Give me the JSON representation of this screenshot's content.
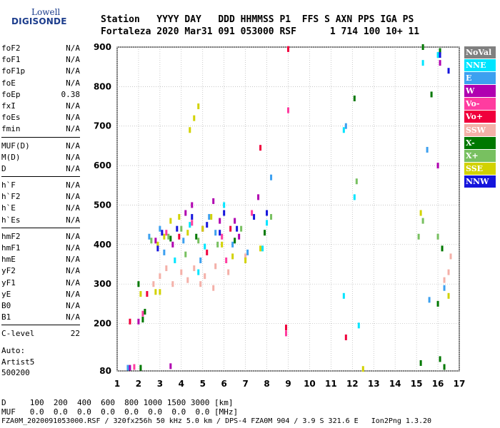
{
  "logo": {
    "line1": "Lowell",
    "line2": "DIGISONDE"
  },
  "header": {
    "line1": "Station   YYYY DAY   DDD HHMMSS P1  FFS S AXN PPS IGA PS",
    "line2": "Fortaleza 2020 Mar31 091 053000 RSF      1 714 100 10+ 11"
  },
  "params": {
    "group1": [
      {
        "name": "foF2",
        "value": "N/A"
      },
      {
        "name": "foF1",
        "value": "N/A"
      },
      {
        "name": "foF1p",
        "value": "N/A"
      },
      {
        "name": "foE",
        "value": "N/A"
      },
      {
        "name": "foEp",
        "value": "0.38"
      },
      {
        "name": "fxI",
        "value": "N/A"
      },
      {
        "name": "foEs",
        "value": "N/A"
      },
      {
        "name": "fmin",
        "value": "N/A"
      }
    ],
    "group2": [
      {
        "name": "MUF(D)",
        "value": "N/A"
      },
      {
        "name": "M(D)",
        "value": "N/A"
      },
      {
        "name": "D",
        "value": "N/A"
      }
    ],
    "group3": [
      {
        "name": "h`F",
        "value": "N/A"
      },
      {
        "name": "h`F2",
        "value": "N/A"
      },
      {
        "name": "h`E",
        "value": "N/A"
      },
      {
        "name": "h`Es",
        "value": "N/A"
      }
    ],
    "group4": [
      {
        "name": "hmF2",
        "value": "N/A"
      },
      {
        "name": "hmF1",
        "value": "N/A"
      },
      {
        "name": "hmE",
        "value": "N/A"
      },
      {
        "name": "yF2",
        "value": "N/A"
      },
      {
        "name": "yF1",
        "value": "N/A"
      },
      {
        "name": "yE",
        "value": "N/A"
      },
      {
        "name": "B0",
        "value": "N/A"
      },
      {
        "name": "B1",
        "value": "N/A"
      }
    ],
    "group5": [
      {
        "name": "C-level",
        "value": "22"
      }
    ]
  },
  "auto": {
    "line1": "Auto:",
    "line2": "Artist5",
    "line3": "500200"
  },
  "bottom": {
    "d_line": "D     100  200  400  600  800 1000 1500 3000 [km]",
    "muf_line": "MUF   0.0  0.0  0.0  0.0  0.0  0.0  0.0  0.0 [MHz]",
    "footer": "FZA0M_2020091053000.RSF / 320fx256h 50 kHz 5.0 km / DPS-4 FZA0M 904 / 3.9 S 321.6 E   Ion2Png 1.3.20"
  },
  "legend": [
    {
      "label": "NoVal",
      "color": "#808080"
    },
    {
      "label": "NNE",
      "color": "#00e5ff"
    },
    {
      "label": "E",
      "color": "#3ca0f0"
    },
    {
      "label": "W",
      "color": "#b000b0"
    },
    {
      "label": "Vo-",
      "color": "#ff3ca0"
    },
    {
      "label": "Vo+",
      "color": "#f0003c"
    },
    {
      "label": "SSW",
      "color": "#f4b0a8"
    },
    {
      "label": "X-",
      "color": "#007800"
    },
    {
      "label": "X+",
      "color": "#78c060"
    },
    {
      "label": "SSE",
      "color": "#d2d200"
    },
    {
      "label": "NNW",
      "color": "#1414dc"
    }
  ],
  "chart_data": {
    "type": "scatter",
    "title": "",
    "xlabel": "",
    "ylabel": "",
    "xlim": [
      1,
      17
    ],
    "ylim": [
      80,
      900
    ],
    "xticks": [
      1,
      2,
      3,
      4,
      5,
      6,
      7,
      8,
      9,
      10,
      11,
      12,
      13,
      14,
      15,
      16,
      17
    ],
    "yticks": [
      80,
      200,
      300,
      400,
      500,
      600,
      700,
      800,
      900
    ],
    "grid": true,
    "series": [
      {
        "name": "NNE",
        "points": [
          [
            4.4,
            450
          ],
          [
            5.1,
            395
          ],
          [
            6.0,
            500
          ],
          [
            7.8,
            390
          ],
          [
            8.0,
            455
          ],
          [
            11.6,
            690
          ],
          [
            11.6,
            270
          ],
          [
            12.1,
            520
          ],
          [
            12.3,
            195
          ],
          [
            16.0,
            880
          ],
          [
            15.3,
            860
          ],
          [
            4.8,
            330
          ],
          [
            3.7,
            360
          ]
        ]
      },
      {
        "name": "E",
        "points": [
          [
            2.5,
            420
          ],
          [
            3.2,
            380
          ],
          [
            4.1,
            410
          ],
          [
            4.9,
            360
          ],
          [
            5.6,
            430
          ],
          [
            6.4,
            400
          ],
          [
            7.1,
            380
          ],
          [
            8.2,
            570
          ],
          [
            11.7,
            700
          ],
          [
            15.5,
            640
          ],
          [
            15.6,
            260
          ],
          [
            16.3,
            290
          ],
          [
            3.0,
            440
          ],
          [
            5.3,
            470
          ],
          [
            1.5,
            88
          ]
        ]
      },
      {
        "name": "W",
        "points": [
          [
            2.8,
            410
          ],
          [
            3.6,
            400
          ],
          [
            4.2,
            480
          ],
          [
            5.0,
            440
          ],
          [
            5.8,
            460
          ],
          [
            6.7,
            420
          ],
          [
            7.6,
            520
          ],
          [
            16.0,
            600
          ],
          [
            16.1,
            860
          ],
          [
            2.0,
            205
          ],
          [
            1.6,
            88
          ],
          [
            3.5,
            92
          ],
          [
            6.5,
            460
          ],
          [
            4.5,
            500
          ],
          [
            5.5,
            510
          ]
        ]
      },
      {
        "name": "Vo-",
        "points": [
          [
            9.0,
            895
          ],
          [
            9.0,
            740
          ],
          [
            8.9,
            175
          ],
          [
            4.5,
            455
          ],
          [
            5.9,
            420
          ],
          [
            2.2,
            225
          ],
          [
            1.8,
            90
          ],
          [
            7.3,
            480
          ],
          [
            3.3,
            430
          ],
          [
            6.1,
            360
          ]
        ]
      },
      {
        "name": "Vo+",
        "points": [
          [
            9.0,
            895
          ],
          [
            8.9,
            190
          ],
          [
            7.7,
            645
          ],
          [
            3.9,
            420
          ],
          [
            5.2,
            380
          ],
          [
            6.3,
            440
          ],
          [
            2.4,
            275
          ],
          [
            1.6,
            205
          ],
          [
            11.7,
            165
          ]
        ]
      },
      {
        "name": "SSW",
        "points": [
          [
            3.0,
            320
          ],
          [
            3.6,
            300
          ],
          [
            4.0,
            330
          ],
          [
            4.6,
            340
          ],
          [
            5.1,
            320
          ],
          [
            5.6,
            345
          ],
          [
            6.2,
            330
          ],
          [
            7.0,
            370
          ],
          [
            3.3,
            340
          ],
          [
            4.3,
            310
          ],
          [
            2.7,
            300
          ],
          [
            16.5,
            330
          ],
          [
            16.6,
            370
          ],
          [
            16.3,
            310
          ],
          [
            5.5,
            290
          ],
          [
            4.9,
            300
          ]
        ]
      },
      {
        "name": "X-",
        "points": [
          [
            2.0,
            300
          ],
          [
            2.2,
            210
          ],
          [
            2.3,
            230
          ],
          [
            3.5,
            415
          ],
          [
            4.7,
            420
          ],
          [
            6.5,
            410
          ],
          [
            12.1,
            770
          ],
          [
            15.7,
            780
          ],
          [
            15.3,
            900
          ],
          [
            16.1,
            890
          ],
          [
            16.2,
            390
          ],
          [
            16.0,
            250
          ],
          [
            16.1,
            110
          ],
          [
            16.3,
            90
          ],
          [
            15.2,
            100
          ],
          [
            2.1,
            88
          ],
          [
            7.9,
            430
          ]
        ]
      },
      {
        "name": "X+",
        "points": [
          [
            2.6,
            410
          ],
          [
            3.4,
            420
          ],
          [
            4.0,
            440
          ],
          [
            4.8,
            410
          ],
          [
            5.7,
            400
          ],
          [
            6.8,
            440
          ],
          [
            8.2,
            470
          ],
          [
            15.3,
            460
          ],
          [
            15.1,
            420
          ],
          [
            16.0,
            420
          ],
          [
            12.2,
            560
          ],
          [
            4.2,
            375
          ]
        ]
      },
      {
        "name": "SSE",
        "points": [
          [
            2.9,
            400
          ],
          [
            3.2,
            420
          ],
          [
            3.5,
            460
          ],
          [
            3.9,
            470
          ],
          [
            4.3,
            430
          ],
          [
            4.6,
            720
          ],
          [
            4.8,
            750
          ],
          [
            4.4,
            690
          ],
          [
            5.0,
            440
          ],
          [
            5.4,
            470
          ],
          [
            5.9,
            400
          ],
          [
            6.4,
            370
          ],
          [
            7.0,
            360
          ],
          [
            7.7,
            390
          ],
          [
            2.8,
            280
          ],
          [
            3.0,
            280
          ],
          [
            2.1,
            275
          ],
          [
            12.5,
            85
          ],
          [
            15.2,
            480
          ],
          [
            16.5,
            270
          ]
        ]
      },
      {
        "name": "NNW",
        "points": [
          [
            3.1,
            430
          ],
          [
            3.8,
            440
          ],
          [
            4.5,
            470
          ],
          [
            5.2,
            450
          ],
          [
            6.0,
            480
          ],
          [
            6.6,
            440
          ],
          [
            7.4,
            470
          ],
          [
            16.1,
            880
          ],
          [
            16.5,
            840
          ],
          [
            8.0,
            480
          ],
          [
            2.9,
            390
          ],
          [
            5.8,
            430
          ]
        ]
      }
    ]
  }
}
